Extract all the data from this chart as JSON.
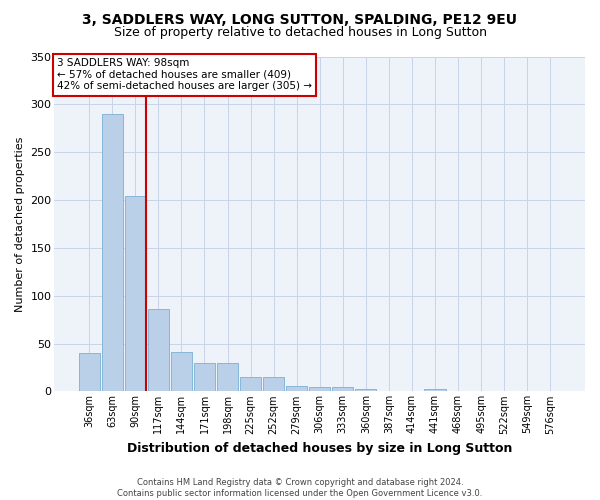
{
  "title": "3, SADDLERS WAY, LONG SUTTON, SPALDING, PE12 9EU",
  "subtitle": "Size of property relative to detached houses in Long Sutton",
  "xlabel": "Distribution of detached houses by size in Long Sutton",
  "ylabel": "Number of detached properties",
  "categories": [
    "36sqm",
    "63sqm",
    "90sqm",
    "117sqm",
    "144sqm",
    "171sqm",
    "198sqm",
    "225sqm",
    "252sqm",
    "279sqm",
    "306sqm",
    "333sqm",
    "360sqm",
    "387sqm",
    "414sqm",
    "441sqm",
    "468sqm",
    "495sqm",
    "522sqm",
    "549sqm",
    "576sqm"
  ],
  "values": [
    40,
    290,
    204,
    86,
    41,
    30,
    30,
    15,
    15,
    6,
    5,
    5,
    3,
    0,
    0,
    3,
    0,
    0,
    0,
    0,
    0
  ],
  "bar_color": "#bad0e8",
  "bar_edge_color": "#7aafd4",
  "annotation_box_edge_color": "#cc0000",
  "vline_color": "#cc0000",
  "ylim": [
    0,
    350
  ],
  "yticks": [
    0,
    50,
    100,
    150,
    200,
    250,
    300,
    350
  ],
  "bg_color": "#eef2f9",
  "footer_line1": "Contains HM Land Registry data © Crown copyright and database right 2024.",
  "footer_line2": "Contains public sector information licensed under the Open Government Licence v3.0.",
  "title_fontsize": 10,
  "subtitle_fontsize": 9,
  "axis_label_fontsize": 8,
  "tick_fontsize": 7,
  "annotation_fontsize": 7.5
}
